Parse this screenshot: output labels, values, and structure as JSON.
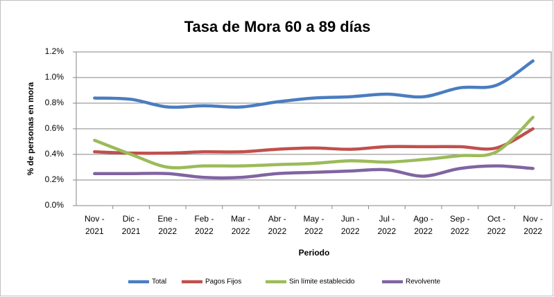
{
  "chart_data": {
    "type": "line",
    "title": "Tasa de Mora 60 a 89 días",
    "xlabel": "Periodo",
    "ylabel": "% de personas en mora",
    "categories": [
      "Nov - 2021",
      "Dic - 2021",
      "Ene - 2022",
      "Feb - 2022",
      "Mar - 2022",
      "Abr - 2022",
      "May - 2022",
      "Jun - 2022",
      "Jul - 2022",
      "Ago - 2022",
      "Sep - 2022",
      "Oct - 2022",
      "Nov - 2022"
    ],
    "series": [
      {
        "name": "Total",
        "color": "#4a7dc0",
        "values": [
          0.84,
          0.83,
          0.77,
          0.78,
          0.77,
          0.81,
          0.84,
          0.85,
          0.87,
          0.85,
          0.92,
          0.94,
          1.13
        ]
      },
      {
        "name": "Pagos Fijos",
        "color": "#c0504d",
        "values": [
          0.42,
          0.41,
          0.41,
          0.42,
          0.42,
          0.44,
          0.45,
          0.44,
          0.46,
          0.46,
          0.46,
          0.45,
          0.6
        ]
      },
      {
        "name": "Sin límite establecido",
        "color": "#9bbb59",
        "values": [
          0.51,
          0.4,
          0.3,
          0.31,
          0.31,
          0.32,
          0.33,
          0.35,
          0.34,
          0.36,
          0.39,
          0.42,
          0.69
        ]
      },
      {
        "name": "Revolvente",
        "color": "#8064a2",
        "values": [
          0.25,
          0.25,
          0.25,
          0.22,
          0.22,
          0.25,
          0.26,
          0.27,
          0.28,
          0.23,
          0.29,
          0.31,
          0.29
        ]
      }
    ],
    "ylim": [
      0,
      1.2
    ],
    "yticks": [
      {
        "value": 0,
        "label": "0.0%"
      },
      {
        "value": 0.2,
        "label": "0.2%"
      },
      {
        "value": 0.4,
        "label": "0.4%"
      },
      {
        "value": 0.6,
        "label": "0.6%"
      },
      {
        "value": 0.8,
        "label": "0.8%"
      },
      {
        "value": 1.0,
        "label": "1.0%"
      },
      {
        "value": 1.2,
        "label": "1.2%"
      }
    ],
    "grid": true,
    "legend": "bottom"
  }
}
